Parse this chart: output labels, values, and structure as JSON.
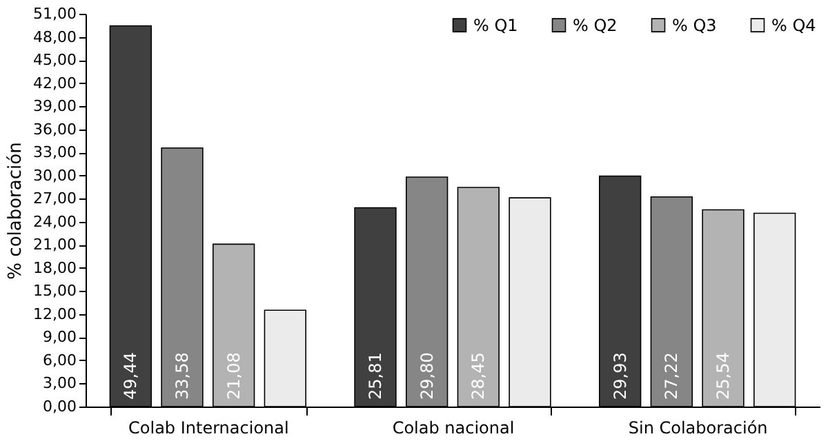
{
  "chart_data": {
    "type": "bar",
    "ylabel": "% colaboración",
    "categories": [
      "Colab Internacional",
      "Colab nacional",
      "Sin Colaboración"
    ],
    "series": [
      {
        "name": "% Q1",
        "color": "#404040",
        "values": [
          49.44,
          25.81,
          29.93
        ],
        "value_labels": [
          "49,44",
          "25,81",
          "29,93"
        ]
      },
      {
        "name": "% Q2",
        "color": "#868686",
        "values": [
          33.58,
          29.8,
          27.22
        ],
        "value_labels": [
          "33,58",
          "29,80",
          "27,22"
        ]
      },
      {
        "name": "% Q3",
        "color": "#b3b3b3",
        "values": [
          21.08,
          28.45,
          25.54
        ],
        "value_labels": [
          "21,08",
          "28,45",
          "25,54"
        ]
      },
      {
        "name": "% Q4",
        "color": "#ebebeb",
        "values": [
          12.5,
          27.1,
          25.1
        ],
        "value_labels": [
          null,
          null,
          null
        ]
      }
    ],
    "ylim": [
      0,
      51
    ],
    "yticks": [
      {
        "value": 0,
        "label": "0,00"
      },
      {
        "value": 3,
        "label": "3,00"
      },
      {
        "value": 6,
        "label": "6,00"
      },
      {
        "value": 9,
        "label": "9,00"
      },
      {
        "value": 12,
        "label": "12,00"
      },
      {
        "value": 15,
        "label": "15,00"
      },
      {
        "value": 18,
        "label": "18,00"
      },
      {
        "value": 21,
        "label": "21,00"
      },
      {
        "value": 24,
        "label": "24,00"
      },
      {
        "value": 27,
        "label": "27,00"
      },
      {
        "value": 30,
        "label": "30,00"
      },
      {
        "value": 33,
        "label": "33,00"
      },
      {
        "value": 36,
        "label": "36,00"
      },
      {
        "value": 39,
        "label": "39,00"
      },
      {
        "value": 42,
        "label": "42,00"
      },
      {
        "value": 45,
        "label": "45,00"
      },
      {
        "value": 48,
        "label": "48,00"
      },
      {
        "value": 51,
        "label": "51,00"
      }
    ],
    "grid": false,
    "legend": "top right"
  }
}
